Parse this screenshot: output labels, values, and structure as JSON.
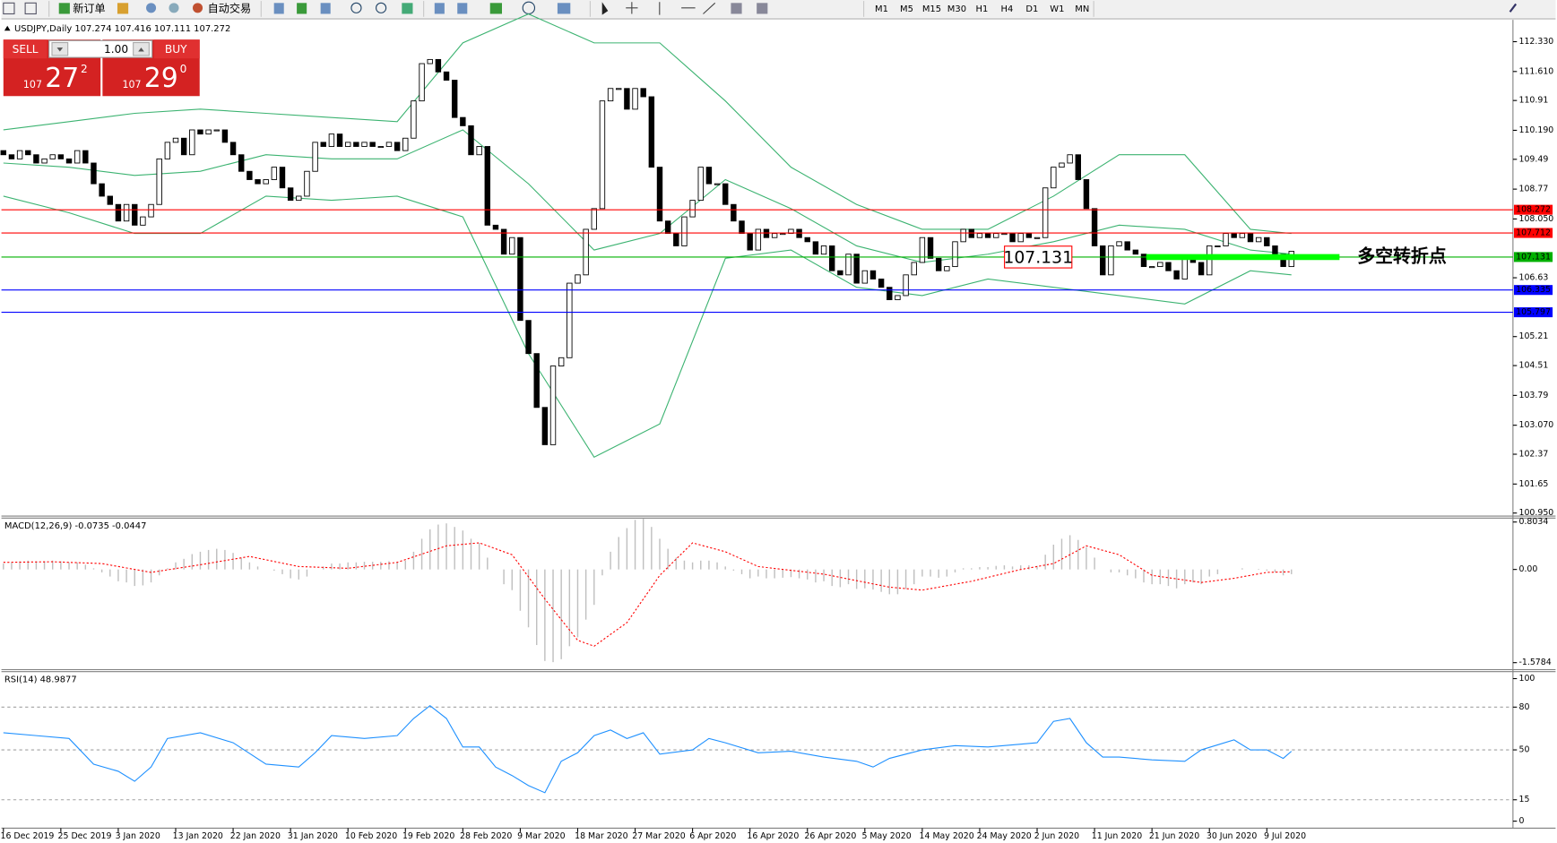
{
  "toolbar": {
    "new_order": "新订单",
    "auto_trading": "自动交易",
    "timeframes": [
      "M1",
      "M5",
      "M15",
      "M30",
      "H1",
      "H4",
      "D1",
      "W1",
      "MN"
    ]
  },
  "trade_panel": {
    "sell": "SELL",
    "buy": "BUY",
    "lots": "1.00",
    "sell_price": {
      "base": "107",
      "pips": "27",
      "point": "2"
    },
    "buy_price": {
      "base": "107",
      "pips": "29",
      "point": "0"
    }
  },
  "chart_data": [
    {
      "type": "candlestick",
      "title": "USDJPY,Daily 107.274 107.416 107.111 107.272",
      "xlim": [
        0,
        184
      ],
      "xticks": [
        {
          "value": 0,
          "label": "16 Dec 2019"
        },
        {
          "value": 7,
          "label": "25 Dec 2019"
        },
        {
          "value": 14,
          "label": "3 Jan 2020"
        },
        {
          "value": 21,
          "label": "13 Jan 2020"
        },
        {
          "value": 28,
          "label": "22 Jan 2020"
        },
        {
          "value": 35,
          "label": "31 Jan 2020"
        },
        {
          "value": 42,
          "label": "10 Feb 2020"
        },
        {
          "value": 49,
          "label": "19 Feb 2020"
        },
        {
          "value": 56,
          "label": "28 Feb 2020"
        },
        {
          "value": 63,
          "label": "9 Mar 2020"
        },
        {
          "value": 70,
          "label": "18 Mar 2020"
        },
        {
          "value": 77,
          "label": "27 Mar 2020"
        },
        {
          "value": 84,
          "label": "6 Apr 2020"
        },
        {
          "value": 91,
          "label": "16 Apr 2020"
        },
        {
          "value": 98,
          "label": "26 Apr 2020"
        },
        {
          "value": 105,
          "label": "5 May 2020"
        },
        {
          "value": 112,
          "label": "14 May 2020"
        },
        {
          "value": 119,
          "label": "24 May 2020"
        },
        {
          "value": 126,
          "label": "2 Jun 2020"
        },
        {
          "value": 133,
          "label": "11 Jun 2020"
        },
        {
          "value": 140,
          "label": "21 Jun 2020"
        },
        {
          "value": 147,
          "label": "30 Jun 2020"
        },
        {
          "value": 154,
          "label": "9 Jul 2020"
        }
      ],
      "ylim": [
        100.9,
        112.81
      ],
      "yticks": [
        {
          "value": 112.33,
          "label": "112.330"
        },
        {
          "value": 111.61,
          "label": "111.610"
        },
        110.91,
        {
          "value": 110.19,
          "label": "110.190"
        },
        109.49,
        108.77,
        {
          "value": 108.05,
          "label": "108.050"
        },
        106.63,
        105.21,
        104.51,
        103.79,
        {
          "value": 103.07,
          "label": "103.070"
        },
        102.37,
        101.65,
        {
          "value": 100.95,
          "label": "100.950"
        }
      ],
      "up_color": "#ffffff",
      "down_color": "#000000",
      "open": [
        109.7,
        109.6,
        109.5,
        109.7,
        109.6,
        109.4,
        109.5,
        109.6,
        109.5,
        109.4,
        109.7,
        109.4,
        108.9,
        108.6,
        108.4,
        108.0,
        108.4,
        107.9,
        108.1,
        108.4,
        109.5,
        109.9,
        110.0,
        109.6,
        110.2,
        110.1,
        110.2,
        110.2,
        109.9,
        109.6,
        109.2,
        109.0,
        108.9,
        109.0,
        109.3,
        108.8,
        108.5,
        108.6,
        109.2,
        109.9,
        109.8,
        110.1,
        109.8,
        109.9,
        109.8,
        109.9,
        109.8,
        109.8,
        109.9,
        109.7,
        110.0,
        110.9,
        111.8,
        111.9,
        111.6,
        111.4,
        110.5,
        110.3,
        109.6,
        109.8,
        107.9,
        107.8,
        107.2,
        107.6,
        105.6,
        104.8,
        103.5,
        102.6,
        104.5,
        104.7,
        106.5,
        106.7,
        107.8,
        108.3,
        110.9,
        111.2,
        111.2,
        110.7,
        111.2,
        111.0,
        109.3,
        108.0,
        107.7,
        107.4,
        108.1,
        108.5,
        109.3,
        108.9,
        108.9,
        108.4,
        108.0,
        107.7,
        107.3,
        107.8,
        107.6,
        107.7,
        107.7,
        107.8,
        107.6,
        107.5,
        107.2,
        107.4,
        106.8,
        106.7,
        107.2,
        106.5,
        106.8,
        106.6,
        106.4,
        106.1,
        106.2,
        106.7,
        107.0,
        107.6,
        107.1,
        106.8,
        106.9,
        107.5,
        107.8,
        107.6,
        107.7,
        107.6,
        107.7,
        107.7,
        107.5,
        107.7,
        107.6,
        107.6,
        108.8,
        109.3,
        109.4,
        109.6,
        109.0,
        108.3,
        107.4,
        106.7,
        107.4,
        107.5,
        107.3,
        107.2,
        106.9,
        106.9,
        107.0,
        106.8,
        106.6,
        107.1,
        107.0,
        106.7,
        107.4,
        107.4,
        107.7,
        107.6,
        107.7,
        107.5,
        107.6,
        107.4,
        107.2,
        106.9
      ],
      "close": [
        109.6,
        109.5,
        109.7,
        109.6,
        109.4,
        109.5,
        109.6,
        109.5,
        109.4,
        109.7,
        109.4,
        108.9,
        108.6,
        108.4,
        108.0,
        108.4,
        107.9,
        108.1,
        108.4,
        109.5,
        109.9,
        110.0,
        109.6,
        110.2,
        110.1,
        110.2,
        110.2,
        109.9,
        109.6,
        109.2,
        109.0,
        108.9,
        109.0,
        109.3,
        108.8,
        108.5,
        108.6,
        109.2,
        109.9,
        109.8,
        110.1,
        109.8,
        109.9,
        109.8,
        109.9,
        109.8,
        109.8,
        109.9,
        109.7,
        110.0,
        110.9,
        111.8,
        111.9,
        111.6,
        111.4,
        110.5,
        110.3,
        109.6,
        109.8,
        107.9,
        107.8,
        107.2,
        107.6,
        105.6,
        104.8,
        103.5,
        102.6,
        104.5,
        104.7,
        106.5,
        106.7,
        107.8,
        108.3,
        110.9,
        111.2,
        111.2,
        110.7,
        111.2,
        111.0,
        109.3,
        108.0,
        107.7,
        107.4,
        108.1,
        108.5,
        109.3,
        108.9,
        108.9,
        108.4,
        108.0,
        107.7,
        107.3,
        107.8,
        107.6,
        107.7,
        107.7,
        107.8,
        107.6,
        107.5,
        107.2,
        107.4,
        106.8,
        106.7,
        107.2,
        106.5,
        106.8,
        106.6,
        106.4,
        106.1,
        106.2,
        106.7,
        107.0,
        107.6,
        107.1,
        106.8,
        106.9,
        107.5,
        107.8,
        107.6,
        107.7,
        107.6,
        107.7,
        107.7,
        107.5,
        107.7,
        107.6,
        107.6,
        108.8,
        109.3,
        109.4,
        109.6,
        109.0,
        108.3,
        107.4,
        106.7,
        107.4,
        107.5,
        107.3,
        107.2,
        106.9,
        106.9,
        107.0,
        106.8,
        106.6,
        107.1,
        107.0,
        106.7,
        107.4,
        107.4,
        107.7,
        107.6,
        107.7,
        107.5,
        107.6,
        107.4,
        107.2,
        106.9,
        107.27
      ],
      "bands": {
        "color": "#3cb371",
        "x": [
          0,
          8,
          16,
          24,
          32,
          40,
          48,
          56,
          64,
          72,
          80,
          88,
          96,
          104,
          112,
          120,
          128,
          136,
          144,
          152,
          157
        ],
        "upper": [
          110.2,
          110.4,
          110.6,
          110.7,
          110.6,
          110.5,
          110.4,
          112.3,
          113.0,
          112.3,
          112.3,
          110.9,
          109.3,
          108.4,
          107.8,
          107.8,
          108.6,
          109.6,
          109.6,
          107.8,
          107.7
        ],
        "middle": [
          109.4,
          109.3,
          109.1,
          109.2,
          109.6,
          109.5,
          109.5,
          110.2,
          108.9,
          107.3,
          107.7,
          109.0,
          108.3,
          107.4,
          107.0,
          107.2,
          107.5,
          107.9,
          107.8,
          107.3,
          107.2
        ],
        "lower": [
          108.6,
          108.2,
          107.7,
          107.7,
          108.6,
          108.5,
          108.6,
          108.1,
          104.8,
          102.3,
          103.1,
          107.1,
          107.3,
          106.4,
          106.2,
          106.6,
          106.4,
          106.2,
          106.0,
          106.8,
          106.7
        ]
      },
      "levels": [
        {
          "value": 108.272,
          "color": "#ff0000"
        },
        {
          "value": 107.712,
          "color": "#ff0000"
        },
        {
          "value": 107.131,
          "color": "#00b000",
          "note": "多空转折点"
        },
        {
          "value": 106.335,
          "color": "#0000ff"
        },
        {
          "value": 105.797,
          "color": "#0000ff"
        }
      ]
    },
    {
      "type": "macd",
      "title": "MACD(12,26,9) -0.0735 -0.0447",
      "ylim": [
        -1.68,
        0.87
      ],
      "yticks": [
        0.8034,
        {
          "value": 0,
          "label": "0.00"
        },
        -1.5784
      ],
      "histogram_color": "#c0c0c0",
      "histogram": [
        0.1,
        0.12,
        0.14,
        0.15,
        0.14,
        0.14,
        0.15,
        0.14,
        0.12,
        0.12,
        0.08,
        0.02,
        -0.05,
        -0.12,
        -0.2,
        -0.22,
        -0.28,
        -0.27,
        -0.22,
        -0.1,
        0.02,
        0.12,
        0.18,
        0.26,
        0.3,
        0.33,
        0.35,
        0.33,
        0.28,
        0.2,
        0.12,
        0.05,
        0.0,
        -0.02,
        -0.08,
        -0.15,
        -0.17,
        -0.12,
        0.0,
        0.05,
        0.1,
        0.1,
        0.12,
        0.12,
        0.13,
        0.13,
        0.13,
        0.14,
        0.13,
        0.15,
        0.3,
        0.52,
        0.68,
        0.76,
        0.78,
        0.72,
        0.66,
        0.52,
        0.45,
        0.2,
        0.0,
        -0.25,
        -0.35,
        -0.7,
        -0.98,
        -1.28,
        -1.55,
        -1.57,
        -1.52,
        -1.3,
        -1.15,
        -0.85,
        -0.6,
        -0.1,
        0.3,
        0.55,
        0.7,
        0.84,
        0.86,
        0.72,
        0.52,
        0.35,
        0.2,
        0.15,
        0.12,
        0.15,
        0.15,
        0.12,
        0.05,
        -0.02,
        -0.08,
        -0.15,
        -0.12,
        -0.15,
        -0.15,
        -0.14,
        -0.13,
        -0.15,
        -0.17,
        -0.22,
        -0.2,
        -0.28,
        -0.3,
        -0.25,
        -0.33,
        -0.32,
        -0.34,
        -0.38,
        -0.42,
        -0.42,
        -0.33,
        -0.25,
        -0.12,
        -0.12,
        -0.14,
        -0.12,
        -0.05,
        0.02,
        0.02,
        0.04,
        0.04,
        0.06,
        0.07,
        0.05,
        0.07,
        0.07,
        0.06,
        0.25,
        0.42,
        0.52,
        0.58,
        0.5,
        0.38,
        0.2,
        0.0,
        -0.05,
        -0.05,
        -0.1,
        -0.15,
        -0.22,
        -0.25,
        -0.25,
        -0.28,
        -0.32,
        -0.25,
        -0.22,
        -0.25,
        -0.12,
        -0.08,
        0.0,
        0.0,
        0.02,
        0.0,
        0.01,
        -0.02,
        -0.05,
        -0.1,
        -0.08
      ],
      "signal": {
        "color": "#ff0000",
        "x": [
          0,
          6,
          12,
          18,
          24,
          30,
          36,
          42,
          48,
          54,
          58,
          62,
          66,
          70,
          72,
          76,
          80,
          84,
          88,
          92,
          100,
          108,
          112,
          118,
          124,
          128,
          132,
          136,
          140,
          146,
          150,
          154,
          157
        ],
        "values": [
          0.12,
          0.13,
          0.1,
          -0.05,
          0.08,
          0.22,
          0.05,
          0.02,
          0.12,
          0.4,
          0.45,
          0.25,
          -0.5,
          -1.2,
          -1.3,
          -0.9,
          -0.1,
          0.45,
          0.3,
          0.05,
          -0.08,
          -0.3,
          -0.35,
          -0.2,
          0.0,
          0.1,
          0.4,
          0.25,
          -0.1,
          -0.22,
          -0.15,
          -0.05,
          -0.04
        ]
      }
    },
    {
      "type": "line",
      "title": "RSI(14) 48.9877",
      "ylim": [
        -4.9,
        104.9
      ],
      "yticks": [
        100,
        80,
        50,
        15,
        0
      ],
      "levels": [
        80,
        50,
        15
      ],
      "color": "#1e90ff",
      "x": [
        0,
        4,
        8,
        11,
        14,
        16,
        18,
        20,
        24,
        28,
        32,
        36,
        38,
        40,
        44,
        48,
        50,
        52,
        54,
        56,
        58,
        60,
        62,
        64,
        66,
        68,
        70,
        72,
        74,
        76,
        78,
        80,
        84,
        86,
        88,
        92,
        96,
        100,
        104,
        106,
        108,
        112,
        116,
        120,
        124,
        126,
        128,
        130,
        132,
        134,
        136,
        140,
        144,
        146,
        150,
        152,
        154,
        156,
        157
      ],
      "values": [
        62,
        60,
        58,
        40,
        35,
        28,
        38,
        58,
        62,
        55,
        40,
        38,
        48,
        60,
        58,
        60,
        72,
        81,
        72,
        52,
        52,
        38,
        32,
        25,
        20,
        42,
        48,
        60,
        64,
        58,
        62,
        47,
        50,
        58,
        55,
        48,
        49,
        45,
        42,
        38,
        44,
        50,
        53,
        52,
        54,
        55,
        70,
        72,
        55,
        45,
        45,
        43,
        42,
        50,
        57,
        50,
        50,
        44,
        49
      ]
    }
  ]
}
